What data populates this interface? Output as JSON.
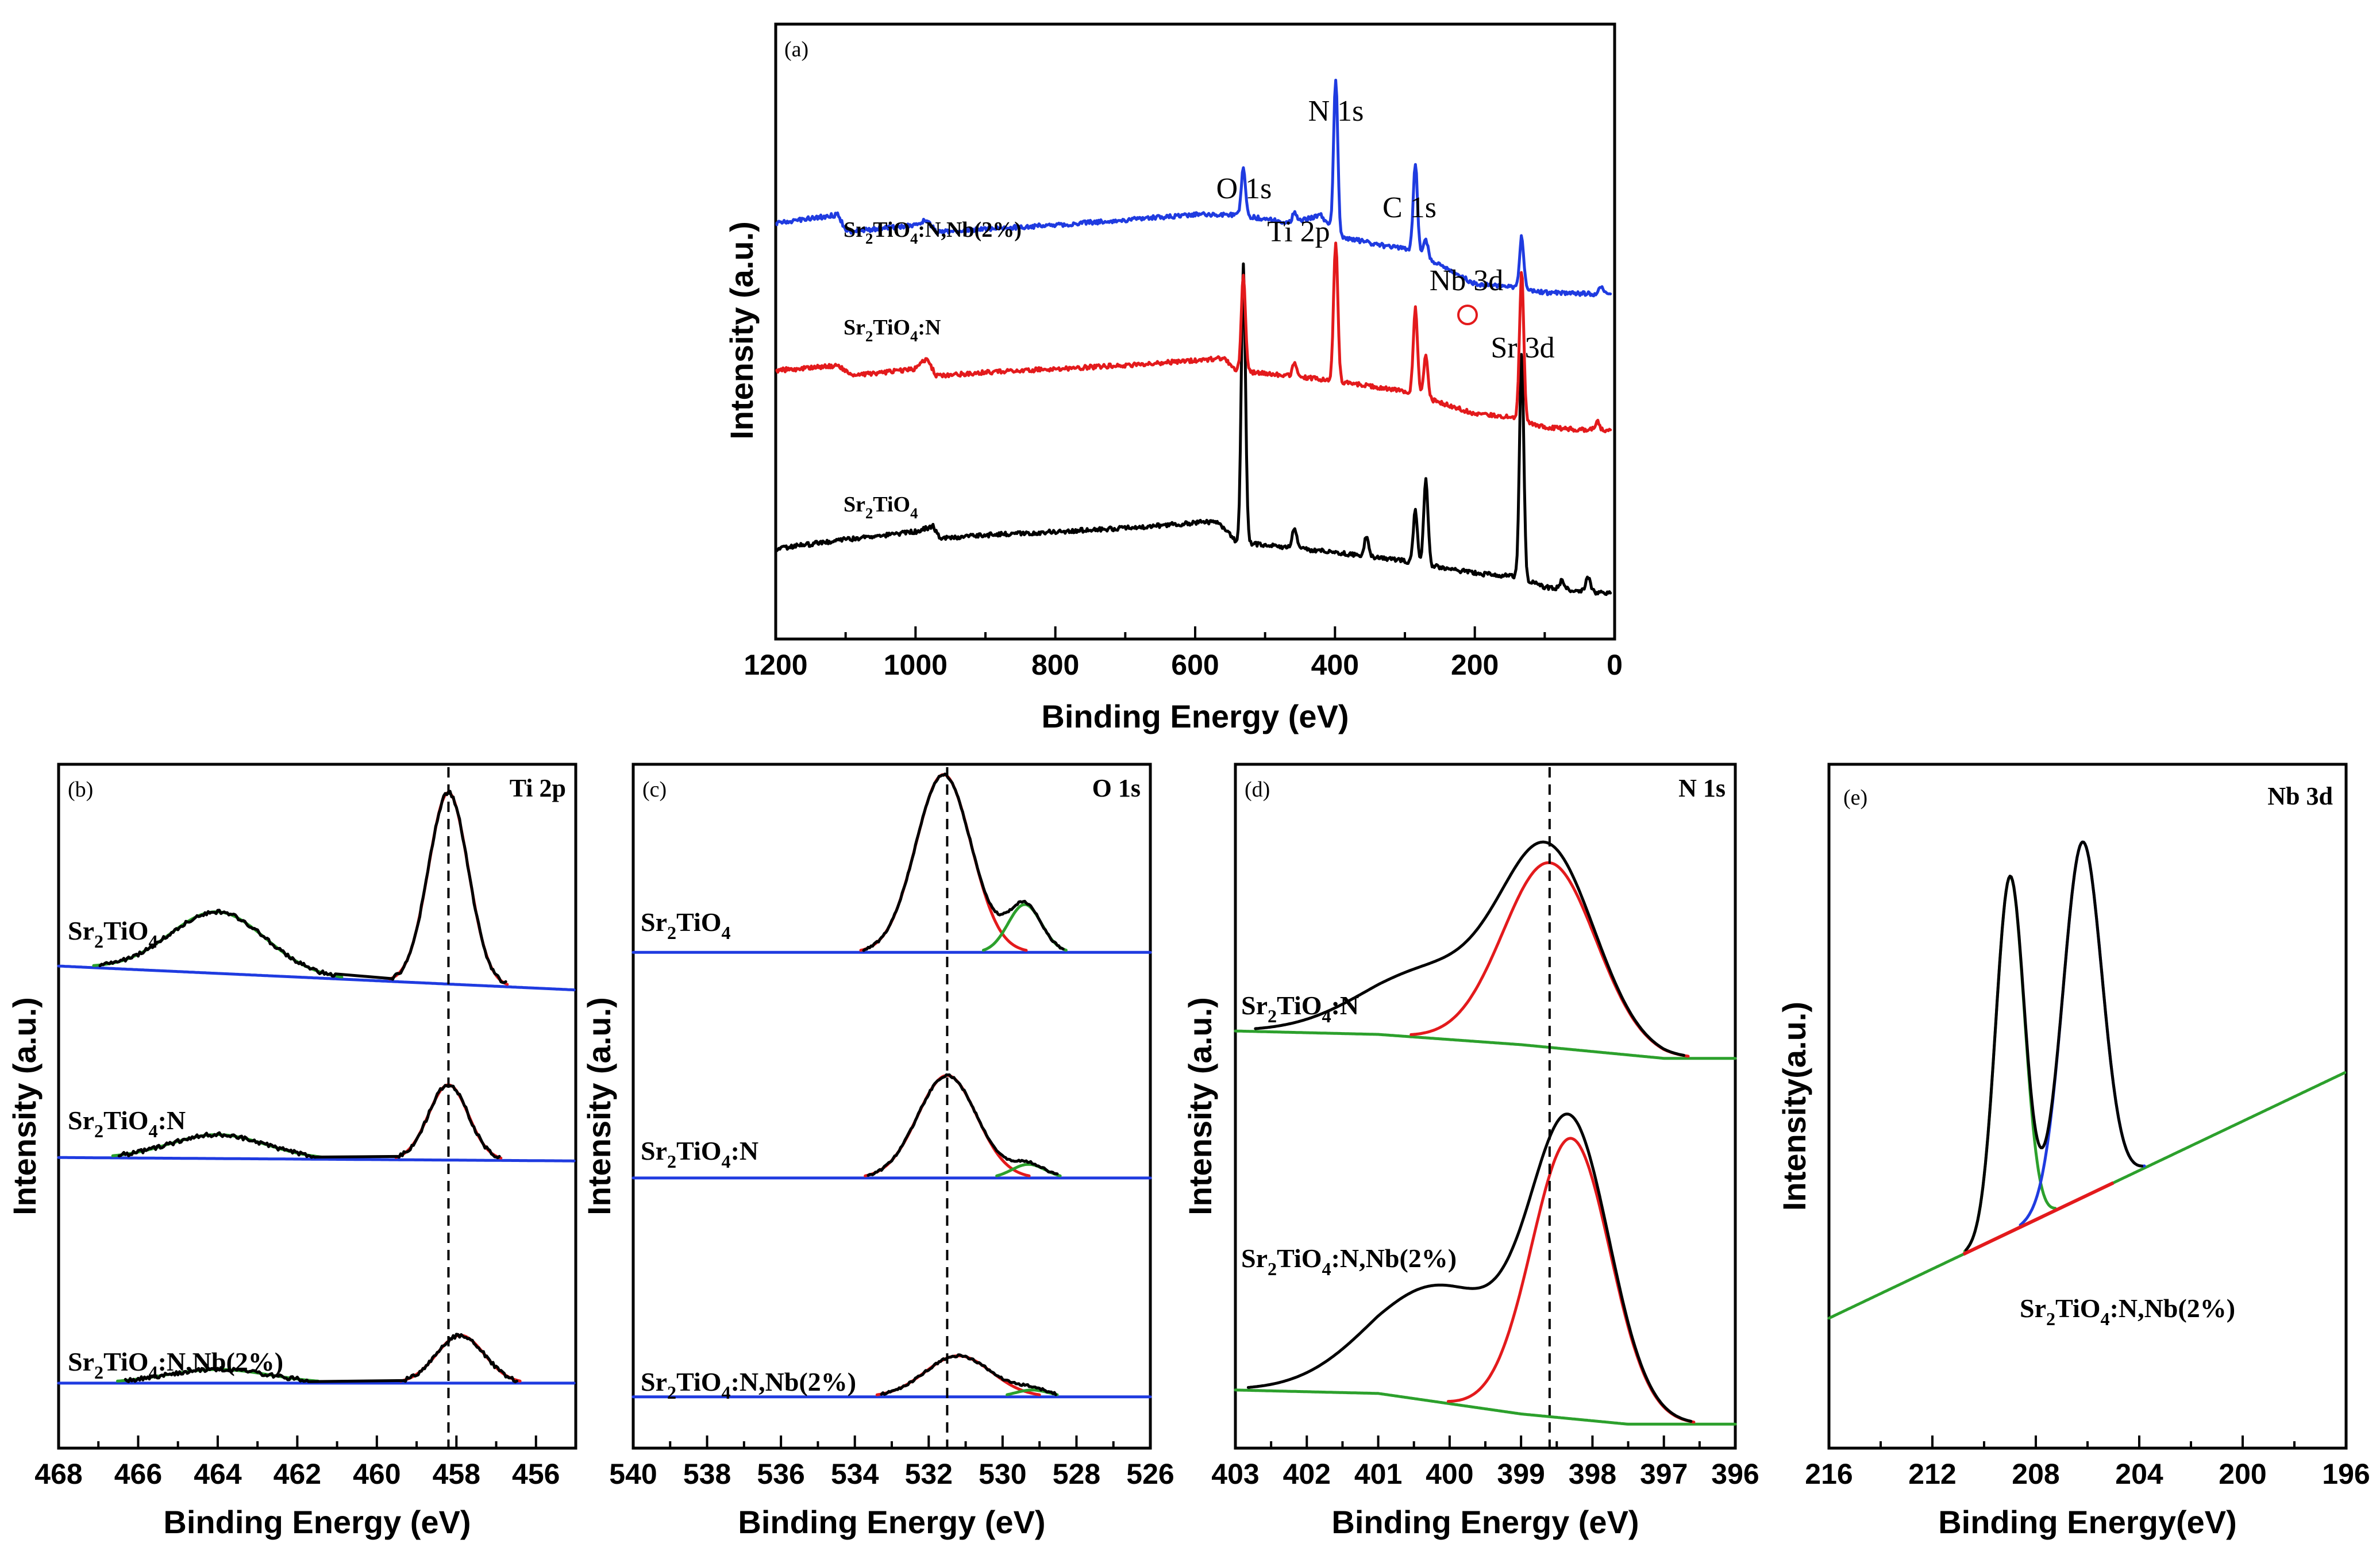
{
  "chart_data": [
    {
      "panel": "(a)",
      "type": "line",
      "xlabel": "Binding Energy (eV)",
      "ylabel": "Intensity (a.u.)",
      "xlim": [
        1200,
        0
      ],
      "xticks": [
        1200,
        1000,
        800,
        600,
        400,
        200,
        0
      ],
      "peak_labels": [
        {
          "text": "O 1s",
          "x": 531
        },
        {
          "text": "N 1s",
          "x": 399
        },
        {
          "text": "Ti 2p",
          "x": 458
        },
        {
          "text": "C 1s",
          "x": 285
        },
        {
          "text": "Nb 3d",
          "x": 207
        },
        {
          "text": "Sr 3d",
          "x": 133
        }
      ],
      "series": [
        {
          "name": "Sr2TiO4",
          "label": "Sr",
          "label_sub": "2",
          "label_mid": "TiO",
          "label_sub2": "4",
          "label_tail": "",
          "color": "#000000",
          "offset": 0.1,
          "baseline": [
            [
              1200,
              0.42
            ],
            [
              1110,
              0.47
            ],
            [
              1000,
              0.52
            ],
            [
              975,
              0.55
            ],
            [
              965,
              0.48
            ],
            [
              900,
              0.5
            ],
            [
              700,
              0.54
            ],
            [
              570,
              0.58
            ],
            [
              540,
              0.46
            ],
            [
              400,
              0.4
            ],
            [
              300,
              0.35
            ],
            [
              200,
              0.28
            ],
            [
              140,
              0.26
            ],
            [
              100,
              0.2
            ],
            [
              0,
              0.16
            ]
          ],
          "peaks": [
            [
              531,
              1.6,
              3
            ],
            [
              458,
              0.12,
              3
            ],
            [
              355,
              0.12,
              3
            ],
            [
              285,
              0.3,
              3
            ],
            [
              270,
              0.5,
              3
            ],
            [
              133,
              1.3,
              3
            ],
            [
              75,
              0.05,
              3
            ],
            [
              38,
              0.08,
              3
            ]
          ]
        },
        {
          "name": "Sr2TiO4:N",
          "label": "Sr",
          "label_sub": "2",
          "label_mid": "TiO",
          "label_sub2": "4",
          "label_tail": ":N",
          "color": "#e31a1c",
          "offset": 1.1,
          "baseline": [
            [
              1200,
              0.45
            ],
            [
              1110,
              0.48
            ],
            [
              1090,
              0.42
            ],
            [
              1000,
              0.46
            ],
            [
              985,
              0.52
            ],
            [
              970,
              0.42
            ],
            [
              900,
              0.44
            ],
            [
              700,
              0.48
            ],
            [
              560,
              0.52
            ],
            [
              540,
              0.45
            ],
            [
              420,
              0.4
            ],
            [
              300,
              0.33
            ],
            [
              200,
              0.2
            ],
            [
              140,
              0.18
            ],
            [
              100,
              0.12
            ],
            [
              0,
              0.1
            ]
          ],
          "peaks": [
            [
              531,
              0.55,
              3
            ],
            [
              458,
              0.08,
              3
            ],
            [
              399,
              0.8,
              3
            ],
            [
              285,
              0.5,
              3
            ],
            [
              270,
              0.25,
              3
            ],
            [
              133,
              0.85,
              3
            ],
            [
              25,
              0.05,
              3
            ]
          ]
        },
        {
          "name": "Sr2TiO4:N,Nb(2%)",
          "label": "Sr",
          "label_sub": "2",
          "label_mid": "TiO",
          "label_sub2": "4",
          "label_tail": ":N,Nb(2%)",
          "color": "#1f3be0",
          "offset": 1.95,
          "baseline": [
            [
              1200,
              0.45
            ],
            [
              1110,
              0.5
            ],
            [
              1100,
              0.4
            ],
            [
              1000,
              0.44
            ],
            [
              985,
              0.47
            ],
            [
              970,
              0.4
            ],
            [
              800,
              0.44
            ],
            [
              600,
              0.5
            ],
            [
              540,
              0.5
            ],
            [
              460,
              0.45
            ],
            [
              420,
              0.5
            ],
            [
              400,
              0.38
            ],
            [
              330,
              0.32
            ],
            [
              290,
              0.3
            ],
            [
              200,
              0.1
            ],
            [
              140,
              0.08
            ],
            [
              100,
              0.05
            ],
            [
              0,
              0.04
            ]
          ],
          "peaks": [
            [
              531,
              0.28,
              3
            ],
            [
              458,
              0.06,
              3
            ],
            [
              399,
              0.9,
              3
            ],
            [
              285,
              0.5,
              3
            ],
            [
              270,
              0.1,
              3
            ],
            [
              133,
              0.3,
              3
            ],
            [
              20,
              0.04,
              3
            ]
          ]
        }
      ],
      "ylim": [
        0,
        3.55
      ]
    },
    {
      "panel": "(b)",
      "title": "Ti 2p",
      "type": "line",
      "xlabel": "Binding Energy (eV)",
      "ylabel": "Intensity (a.u.)",
      "xlim": [
        468,
        455
      ],
      "xticks": [
        468,
        466,
        464,
        462,
        460,
        458,
        456
      ],
      "ylim": [
        0,
        1
      ],
      "dashed_line_x": 458.2,
      "series_labels": [
        {
          "label": "Sr",
          "label_sub": "2",
          "label_mid": "TiO",
          "label_sub2": "4",
          "label_tail": ""
        },
        {
          "label": "Sr",
          "label_sub": "2",
          "label_mid": "TiO",
          "label_sub2": "4",
          "label_tail": ":N"
        },
        {
          "label": "Sr",
          "label_sub": "2",
          "label_mid": "TiO",
          "label_sub2": "4",
          "label_tail": ":N,Nb(2%)"
        }
      ],
      "stacks": [
        {
          "bg": [
            [
              468,
              0.705
            ],
            [
              455,
              0.67
            ]
          ],
          "peaks": [
            {
              "c": 458.2,
              "h": 0.28,
              "w": 0.5,
              "color": "#e31a1c"
            },
            {
              "c": 464.0,
              "h": 0.09,
              "w": 1.2,
              "color": "#2ca02c"
            }
          ]
        },
        {
          "bg": [
            [
              468,
              0.425
            ],
            [
              455,
              0.42
            ]
          ],
          "peaks": [
            {
              "c": 458.2,
              "h": 0.11,
              "w": 0.5,
              "color": "#e31a1c"
            },
            {
              "c": 464.0,
              "h": 0.035,
              "w": 1.2,
              "color": "#2ca02c"
            }
          ]
        },
        {
          "bg": [
            [
              468,
              0.095
            ],
            [
              455,
              0.095
            ]
          ],
          "peaks": [
            {
              "c": 457.9,
              "h": 0.07,
              "w": 0.6,
              "color": "#e31a1c"
            },
            {
              "c": 464.0,
              "h": 0.02,
              "w": 1.3,
              "color": "#2ca02c"
            }
          ]
        }
      ]
    },
    {
      "panel": "(c)",
      "title": "O 1s",
      "type": "line",
      "xlabel": "Binding Energy (eV)",
      "ylabel": "Intensity (a.u.)",
      "xlim": [
        540,
        526
      ],
      "xticks": [
        540,
        538,
        536,
        534,
        532,
        530,
        528,
        526
      ],
      "ylim": [
        0,
        1
      ],
      "dashed_line_x": 531.5,
      "series_labels": [
        {
          "label": "Sr",
          "label_sub": "2",
          "label_mid": "TiO",
          "label_sub2": "4",
          "label_tail": ""
        },
        {
          "label": "Sr",
          "label_sub": "2",
          "label_mid": "TiO",
          "label_sub2": "4",
          "label_tail": ":N"
        },
        {
          "label": "Sr",
          "label_sub": "2",
          "label_mid": "TiO",
          "label_sub2": "4",
          "label_tail": ":N,Nb(2%)"
        }
      ],
      "stacks": [
        {
          "bg": [
            [
              540,
              0.725
            ],
            [
              526,
              0.725
            ]
          ],
          "peaks": [
            {
              "c": 531.6,
              "h": 0.26,
              "w": 0.75,
              "color": "#e31a1c"
            },
            {
              "c": 529.4,
              "h": 0.07,
              "w": 0.45,
              "color": "#2ca02c"
            }
          ]
        },
        {
          "bg": [
            [
              540,
              0.395
            ],
            [
              526,
              0.395
            ]
          ],
          "peaks": [
            {
              "c": 531.5,
              "h": 0.15,
              "w": 0.8,
              "color": "#e31a1c"
            },
            {
              "c": 529.3,
              "h": 0.02,
              "w": 0.45,
              "color": "#2ca02c"
            }
          ]
        },
        {
          "bg": [
            [
              540,
              0.075
            ],
            [
              526,
              0.075
            ]
          ],
          "peaks": [
            {
              "c": 531.2,
              "h": 0.06,
              "w": 0.9,
              "color": "#e31a1c"
            },
            {
              "c": 529.2,
              "h": 0.01,
              "w": 0.45,
              "color": "#2ca02c"
            }
          ]
        }
      ]
    },
    {
      "panel": "(d)",
      "title": "N 1s",
      "type": "line",
      "xlabel": "Binding Energy (eV)",
      "ylabel": "Intensity (a.u.)",
      "xlim": [
        403,
        396
      ],
      "xticks": [
        403,
        402,
        401,
        400,
        399,
        398,
        397,
        396
      ],
      "ylim": [
        0,
        1
      ],
      "dashed_line_x": 398.6,
      "series_labels": [
        {
          "label": "Sr",
          "label_sub": "2",
          "label_mid": "TiO",
          "label_sub2": "4",
          "label_tail": ":N"
        },
        {
          "label": "Sr",
          "label_sub": "2",
          "label_mid": "TiO",
          "label_sub2": "4",
          "label_tail": ":N,Nb(2%)"
        }
      ],
      "stacks": [
        {
          "bg": [
            [
              403,
              0.61
            ],
            [
              401,
              0.605
            ],
            [
              399,
              0.59
            ],
            [
              397,
              0.57
            ],
            [
              396,
              0.57
            ]
          ],
          "peaks": [
            {
              "c": 398.6,
              "h": 0.27,
              "w": 0.65,
              "color": "#e31a1c"
            },
            {
              "c": 400.2,
              "h": 0.1,
              "w": 1.0,
              "color": "none"
            }
          ]
        },
        {
          "bg": [
            [
              403,
              0.085
            ],
            [
              401,
              0.08
            ],
            [
              399,
              0.05
            ],
            [
              397.5,
              0.035
            ],
            [
              396,
              0.035
            ]
          ],
          "peaks": [
            {
              "c": 398.3,
              "h": 0.41,
              "w": 0.55,
              "color": "#e31a1c"
            },
            {
              "c": 400.1,
              "h": 0.17,
              "w": 1.0,
              "color": "none"
            }
          ]
        }
      ]
    },
    {
      "panel": "(e)",
      "title": "Nb 3d",
      "type": "line",
      "xlabel": "Binding Energy(eV)",
      "ylabel": "Intensity(a.u.)",
      "xlim": [
        216,
        196
      ],
      "xticks": [
        216,
        212,
        208,
        204,
        200,
        196
      ],
      "ylim": [
        0,
        1
      ],
      "series_labels": [
        {
          "label": "Sr",
          "label_sub": "2",
          "label_mid": "TiO",
          "label_sub2": "4",
          "label_tail": ":N,Nb(2%)"
        }
      ],
      "stacks": [
        {
          "bg": [
            [
              216,
              0.19
            ],
            [
              196,
              0.55
            ]
          ],
          "peaks": [
            {
              "c": 209.0,
              "h": 0.52,
              "w": 0.55,
              "color": "#2ca02c"
            },
            {
              "c": 206.2,
              "h": 0.52,
              "w": 0.75,
              "color": "#1f3be0"
            }
          ]
        }
      ]
    }
  ]
}
